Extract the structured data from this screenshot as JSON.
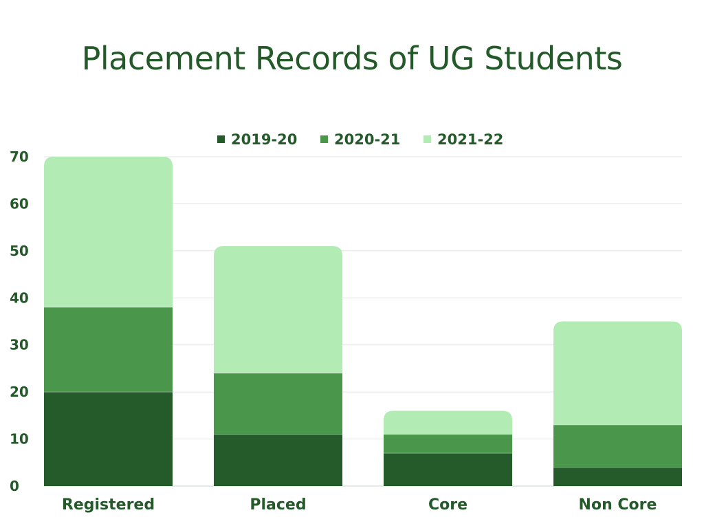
{
  "chart_data": {
    "type": "bar",
    "stacked": true,
    "title": "Placement Records of UG Students",
    "xlabel": "",
    "ylabel": "",
    "categories": [
      "Registered",
      "Placed",
      "Core",
      "Non Core"
    ],
    "series": [
      {
        "name": "2019-20",
        "color": "#255a2b",
        "values": [
          20,
          11,
          7,
          4
        ]
      },
      {
        "name": "2020-21",
        "color": "#4a974b",
        "values": [
          18,
          13,
          4,
          9
        ]
      },
      {
        "name": "2021-22",
        "color": "#b2ebb4",
        "values": [
          32,
          27,
          5,
          22
        ]
      }
    ],
    "ylim": [
      0,
      70
    ],
    "yticks": [
      "0",
      "10",
      "20",
      "30",
      "40",
      "50",
      "60",
      "70"
    ],
    "grid": true,
    "legend_position": "top-center"
  }
}
